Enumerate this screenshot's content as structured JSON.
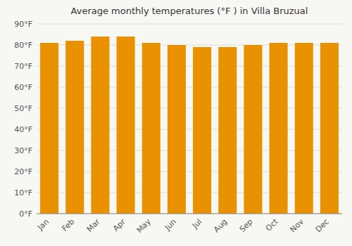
{
  "chart_data": {
    "type": "bar",
    "title": "Average monthly temperatures (°F ) in Villa Bruzual",
    "categories": [
      "Jan",
      "Feb",
      "Mar",
      "Apr",
      "May",
      "Jun",
      "Jul",
      "Aug",
      "Sep",
      "Oct",
      "Nov",
      "Dec"
    ],
    "values": [
      81,
      82,
      84,
      84,
      81,
      80,
      79,
      79,
      80,
      81,
      81,
      81
    ],
    "color": "#ea9101",
    "ylim": [
      0,
      90
    ],
    "yticks": [
      {
        "value": 0,
        "label": "0°F"
      },
      {
        "value": 10,
        "label": "10°F"
      },
      {
        "value": 20,
        "label": "20°F"
      },
      {
        "value": 30,
        "label": "30°F"
      },
      {
        "value": 40,
        "label": "40°F"
      },
      {
        "value": 50,
        "label": "50°F"
      },
      {
        "value": 60,
        "label": "60°F"
      },
      {
        "value": 70,
        "label": "70°F"
      },
      {
        "value": 80,
        "label": "80°F"
      },
      {
        "value": 90,
        "label": "90°F"
      }
    ],
    "grid": true
  }
}
